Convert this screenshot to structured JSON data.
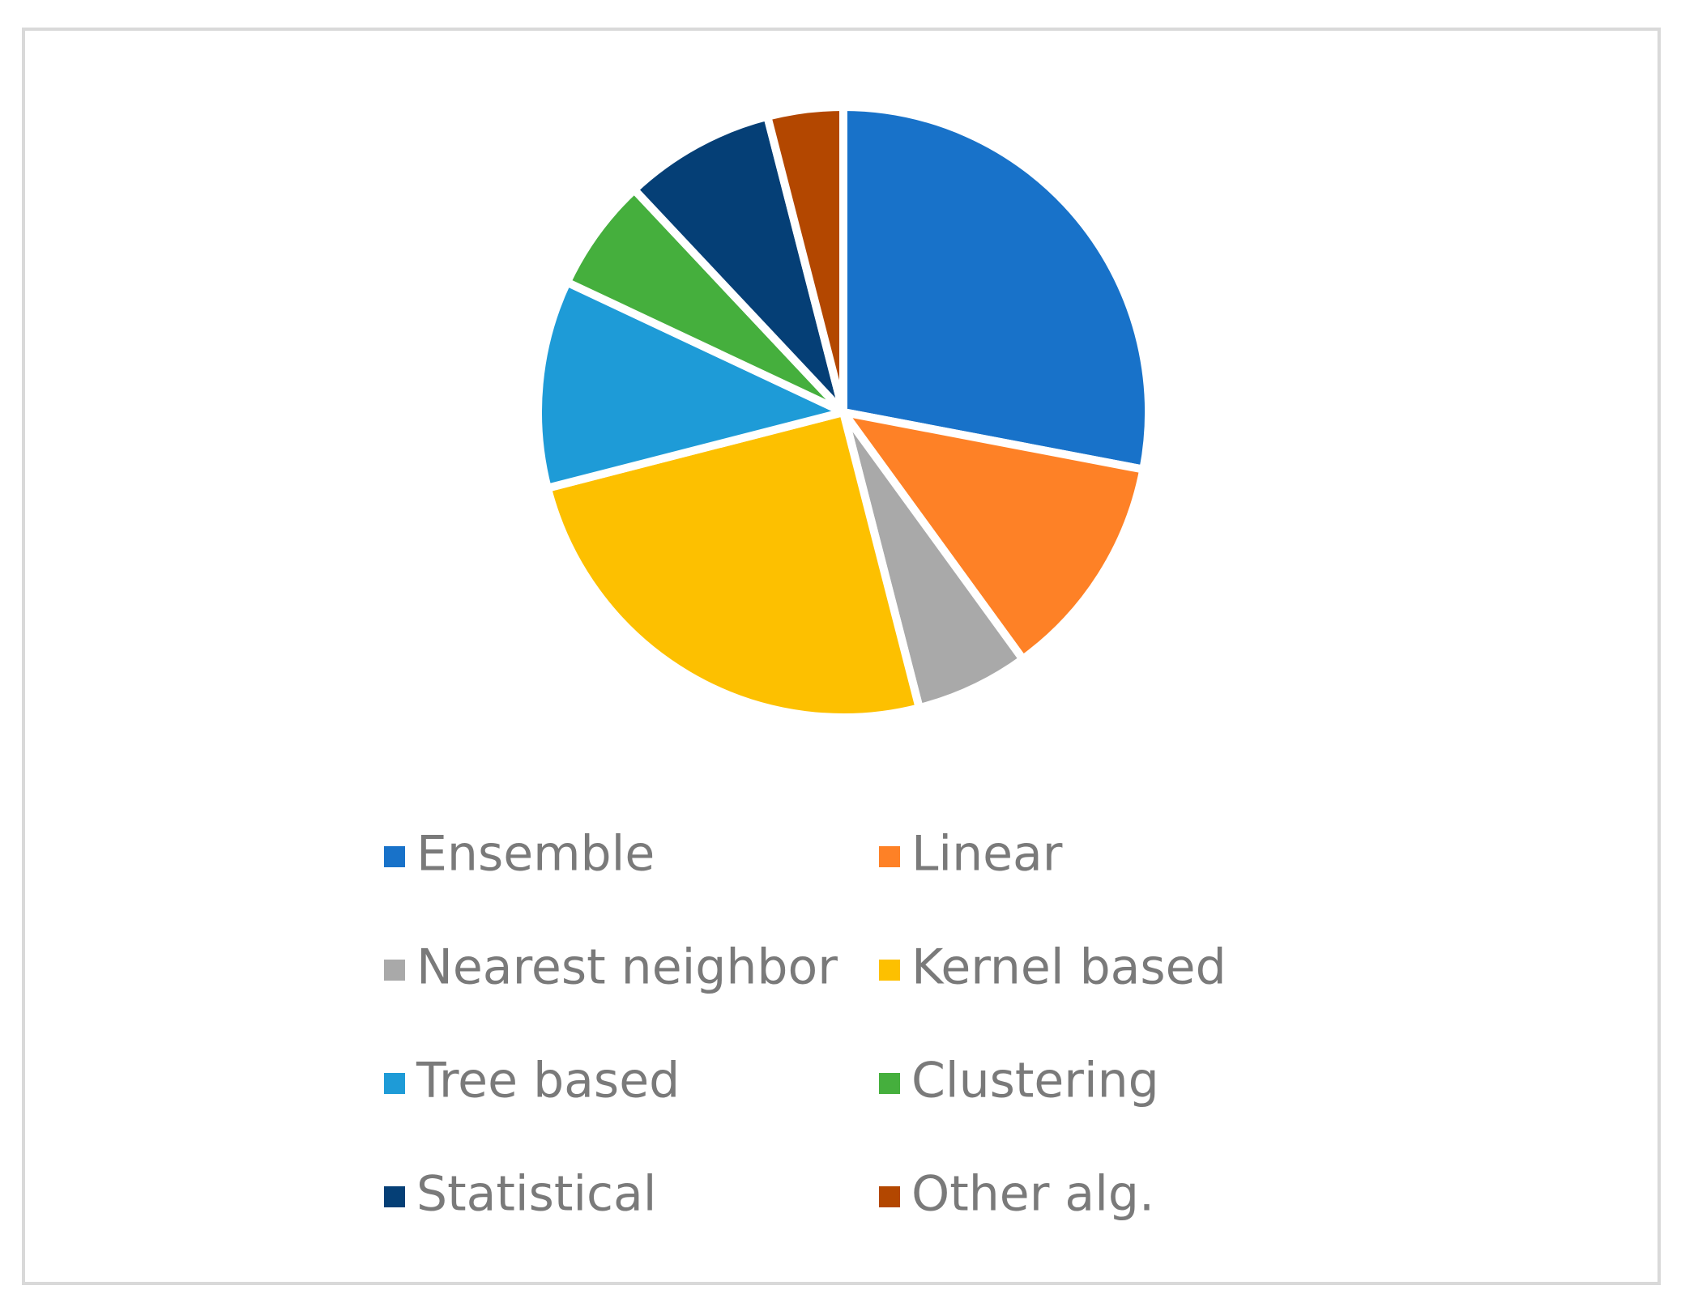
{
  "chart_data": {
    "type": "pie",
    "categories": [
      "Ensemble",
      "Linear",
      "Nearest neighbor",
      "Kernel based",
      "Tree based",
      "Clustering",
      "Statistical",
      "Other alg."
    ],
    "values": [
      28,
      12,
      6,
      25,
      11,
      6,
      8,
      4
    ],
    "colors": [
      "#1872c9",
      "#fe8126",
      "#a9a9a9",
      "#fdc000",
      "#1e9bd7",
      "#45af3d",
      "#053f76",
      "#b34700"
    ],
    "legend": "bottom"
  }
}
